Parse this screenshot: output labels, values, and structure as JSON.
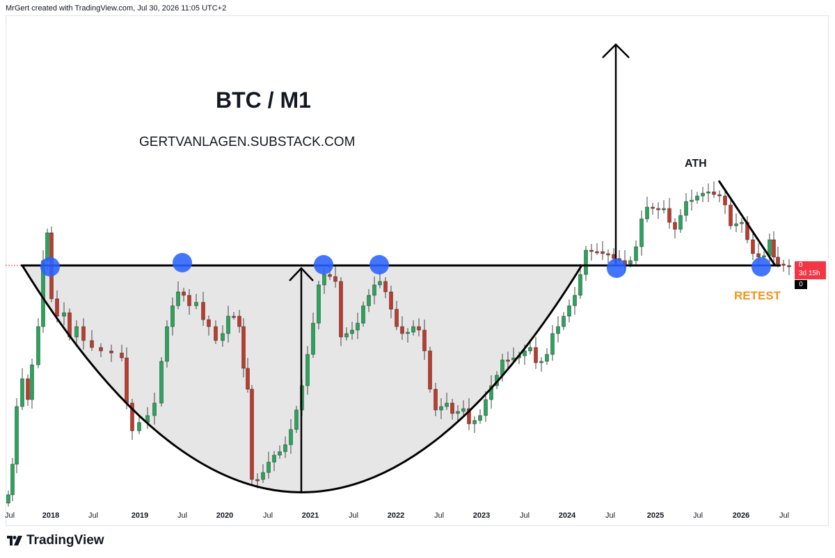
{
  "header": {
    "text": "MrGert created with TradingView.com, Jul 30, 2026 11:05 UTC+2"
  },
  "annotations": {
    "title": "BTC / M1",
    "subtitle": "GERTVANLAGEN.SUBSTACK.COM",
    "ath": "ATH",
    "retest": "RETEST"
  },
  "price_tag": {
    "value": "0",
    "countdown": "3d 15h",
    "zero": "0"
  },
  "branding": {
    "name": "TradingView"
  },
  "colors": {
    "up": "#26a65b",
    "down": "#c0392b",
    "marker": "#2962ff",
    "line": "#000000",
    "retest": "#f7931a",
    "fill": "#e6e6e6"
  },
  "chart_data": {
    "type": "candlestick",
    "title": "BTC / M1",
    "x_tick_labels": [
      {
        "label": "Jul",
        "kind": "month"
      },
      {
        "label": "2018",
        "kind": "year"
      },
      {
        "label": "Jul",
        "kind": "month"
      },
      {
        "label": "2019",
        "kind": "year"
      },
      {
        "label": "Jul",
        "kind": "month"
      },
      {
        "label": "2020",
        "kind": "year"
      },
      {
        "label": "Jul",
        "kind": "month"
      },
      {
        "label": "2021",
        "kind": "year"
      },
      {
        "label": "Jul",
        "kind": "month"
      },
      {
        "label": "2022",
        "kind": "year"
      },
      {
        "label": "Jul",
        "kind": "month"
      },
      {
        "label": "2023",
        "kind": "year"
      },
      {
        "label": "Jul",
        "kind": "month"
      },
      {
        "label": "2024",
        "kind": "year"
      },
      {
        "label": "Jul",
        "kind": "month"
      },
      {
        "label": "2025",
        "kind": "year"
      },
      {
        "label": "Jul",
        "kind": "month"
      },
      {
        "label": "2026",
        "kind": "year"
      },
      {
        "label": "Jul",
        "kind": "month"
      }
    ],
    "pattern": "cup-and-handle",
    "neckline": "horizontal resistance",
    "markers": [
      "2018-01",
      "2019-07",
      "2021-04",
      "2021-11",
      "2024-08",
      "2026-05"
    ],
    "annotations": [
      "ATH",
      "RETEST"
    ],
    "grid": false
  }
}
